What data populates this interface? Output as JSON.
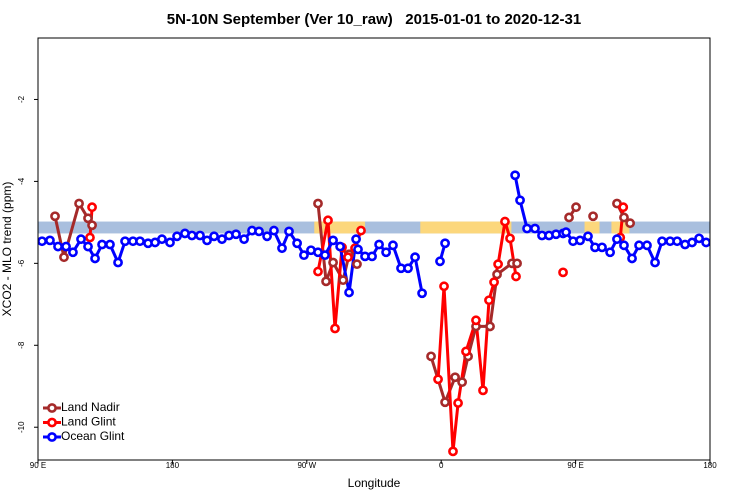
{
  "chart_data": {
    "type": "line",
    "title": "5N-10N September (Ver 10_raw)   2015-01-01 to 2020-12-31",
    "x_label": "Longitude",
    "y_label": "XCO2 - MLO trend (ppm)",
    "xlim": [
      90,
      540
    ],
    "xticks": [
      {
        "value": 90,
        "label": "90 E"
      },
      180,
      {
        "value": 270,
        "label": "90 W"
      },
      {
        "value": 360,
        "label": "0"
      },
      {
        "value": 450,
        "label": "90 E"
      },
      {
        "value": 540,
        "label": "180"
      }
    ],
    "ylim": [
      -10.8,
      -0.5
    ],
    "yticks": [
      -2,
      -4,
      -6,
      -8,
      -10
    ],
    "grid": false,
    "legend": "bottom-left",
    "surface_band": {
      "range": [
        -5.27,
        -4.98
      ],
      "ocean_color": "#a9bfde",
      "land_color": "#fcd77c",
      "land": [
        [
          275,
          309
        ],
        [
          346,
          407
        ],
        [
          456,
          466
        ],
        [
          474,
          486
        ]
      ]
    },
    "series": [
      {
        "name": "Land Nadir",
        "color": "#a52a2a",
        "x": [
          101.4,
          107.4,
          117.5,
          123.5,
          126.2,
          null,
          277.5,
          282.9,
          287.6,
          294.3,
          298.3,
          303.6,
          null,
          353.2,
          362.6,
          369.3,
          374.0,
          378.0,
          383.3,
          392.7,
          397.4,
          407.4,
          410.8,
          null,
          445.6,
          450.3,
          null,
          461.7,
          null,
          477.7,
          482.4,
          486.5
        ],
        "values": [
          -4.85,
          -5.85,
          -4.54,
          -4.9,
          -5.07,
          null,
          -4.54,
          -6.44,
          -5.98,
          -6.41,
          -5.78,
          -6.02,
          null,
          -8.27,
          -9.39,
          -8.78,
          -8.9,
          -8.27,
          -7.54,
          -7.54,
          -6.27,
          -6.0,
          -6.0,
          null,
          -4.88,
          -4.63,
          null,
          -4.85,
          null,
          -4.54,
          -4.88,
          -5.02
        ]
      },
      {
        "name": "Land Glint",
        "color": "#ff0000",
        "x": [
          124.8,
          126.2,
          null,
          277.5,
          284.2,
          288.9,
          293.6,
          297.6,
          302.3,
          306.3,
          null,
          357.9,
          361.9,
          367.9,
          371.3,
          376.6,
          383.3,
          388.0,
          392.0,
          395.4,
          398.1,
          402.7,
          406.1,
          410.1,
          null,
          441.6,
          null,
          479.9,
          481.9
        ],
        "values": [
          -5.37,
          -4.63,
          null,
          -6.2,
          -4.95,
          -7.59,
          -5.61,
          -5.85,
          -5.63,
          -5.2,
          null,
          -8.83,
          -6.56,
          -10.59,
          -9.41,
          -8.15,
          -7.39,
          -9.1,
          -6.9,
          -6.46,
          -6.02,
          -4.98,
          -5.39,
          -6.32,
          null,
          -6.22,
          null,
          -5.37,
          -4.63
        ]
      },
      {
        "name": "Ocean Glint",
        "color": "#0000ff",
        "x": [
          92.7,
          98.0,
          103.4,
          108.8,
          113.4,
          118.8,
          123.5,
          128.2,
          132.9,
          138.2,
          143.6,
          148.3,
          153.6,
          158.3,
          163.7,
          168.4,
          173.0,
          178.4,
          183.1,
          188.4,
          193.1,
          198.5,
          203.2,
          207.9,
          213.2,
          217.9,
          222.6,
          228.0,
          233.3,
          238.0,
          243.4,
          248.0,
          253.4,
          258.1,
          263.5,
          268.1,
          272.8,
          277.5,
          282.2,
          287.6,
          292.3,
          298.3,
          303.0,
          304.3,
          309.0,
          313.7,
          318.4,
          323.1,
          327.7,
          333.1,
          337.8,
          342.5,
          347.2,
          null,
          359.2,
          362.6,
          null,
          409.5,
          412.8,
          417.5,
          422.8,
          427.5,
          432.2,
          436.9,
          441.6,
          443.6,
          448.3,
          453.0,
          458.3,
          463.0,
          467.7,
          473.1,
          477.7,
          482.4,
          487.8,
          492.5,
          497.8,
          503.2,
          507.9,
          513.3,
          518.0,
          523.3,
          528.0,
          532.7,
          537.4
        ],
        "values": [
          -5.46,
          -5.44,
          -5.59,
          -5.59,
          -5.73,
          -5.41,
          -5.59,
          -5.88,
          -5.54,
          -5.54,
          -5.98,
          -5.46,
          -5.46,
          -5.46,
          -5.51,
          -5.49,
          -5.41,
          -5.49,
          -5.34,
          -5.27,
          -5.32,
          -5.32,
          -5.44,
          -5.34,
          -5.41,
          -5.32,
          -5.29,
          -5.41,
          -5.2,
          -5.22,
          -5.34,
          -5.2,
          -5.63,
          -5.22,
          -5.51,
          -5.8,
          -5.68,
          -5.73,
          -5.8,
          -5.44,
          -5.59,
          -6.71,
          -5.41,
          -5.66,
          -5.83,
          -5.83,
          -5.54,
          -5.73,
          -5.56,
          -6.12,
          -6.12,
          -5.85,
          -6.73,
          null,
          -5.95,
          -5.51,
          null,
          -3.85,
          -4.46,
          -5.15,
          -5.15,
          -5.32,
          -5.32,
          -5.29,
          -5.27,
          -5.24,
          -5.46,
          -5.44,
          -5.34,
          -5.61,
          -5.61,
          -5.73,
          -5.41,
          -5.56,
          -5.88,
          -5.56,
          -5.56,
          -5.98,
          -5.46,
          -5.46,
          -5.46,
          -5.54,
          -5.49,
          -5.39,
          -5.49
        ]
      }
    ]
  }
}
